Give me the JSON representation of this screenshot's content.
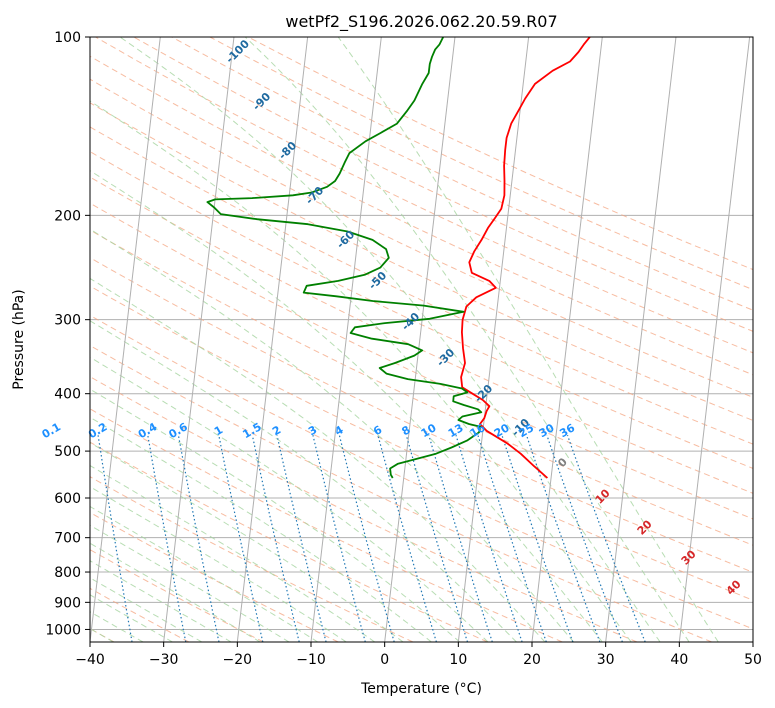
{
  "chart_data": {
    "type": "line",
    "diagram": "skew-t log-p",
    "title": "wetPf2_S196.2026.062.20.59.R07",
    "xlabel": "Temperature (°C)",
    "ylabel": "Pressure (hPa)",
    "xlim": [
      -40,
      50
    ],
    "ylim": [
      1050,
      100
    ],
    "y_scale": "log",
    "grid": true,
    "x_ticks": [
      -40,
      -30,
      -20,
      -10,
      0,
      10,
      20,
      30,
      40,
      50
    ],
    "y_ticks": [
      100,
      200,
      300,
      400,
      500,
      600,
      700,
      800,
      900,
      1000
    ],
    "colors": {
      "temperature": "#ff0000",
      "dewpoint": "#008000",
      "isotherm": "#b0b0b0",
      "dry_adiabat": "#f4a582",
      "moist_adiabat": "#a6d5a0",
      "mixing_ratio": "#1f77b4",
      "mixing_label": "#1e90ff",
      "dry_label": "#1f6aa0",
      "moist_label": "#d62728",
      "isobar": "#b0b0b0"
    },
    "series": [
      {
        "key": "temperature",
        "points": [
          [
            19.5,
            555
          ],
          [
            17.5,
            530
          ],
          [
            15.5,
            505
          ],
          [
            13.5,
            485
          ],
          [
            10.5,
            462
          ],
          [
            9.5,
            450
          ],
          [
            10.0,
            440
          ],
          [
            10.2,
            428
          ],
          [
            10.5,
            420
          ],
          [
            9.5,
            410
          ],
          [
            8.0,
            400
          ],
          [
            6.5,
            390
          ],
          [
            6.2,
            375
          ],
          [
            6.5,
            355
          ],
          [
            6.0,
            335
          ],
          [
            5.6,
            315
          ],
          [
            5.5,
            300
          ],
          [
            5.8,
            285
          ],
          [
            7.0,
            275
          ],
          [
            9.5,
            265
          ],
          [
            8.5,
            258
          ],
          [
            6.0,
            250
          ],
          [
            5.5,
            240
          ],
          [
            6.0,
            230
          ],
          [
            6.8,
            220
          ],
          [
            7.5,
            210
          ],
          [
            8.3,
            202
          ],
          [
            9.0,
            195
          ],
          [
            9.2,
            185
          ],
          [
            9.0,
            175
          ],
          [
            8.7,
            165
          ],
          [
            8.6,
            155
          ],
          [
            8.6,
            148
          ],
          [
            9.0,
            140
          ],
          [
            9.8,
            133
          ],
          [
            10.5,
            127
          ],
          [
            11.6,
            120
          ],
          [
            13.8,
            114
          ],
          [
            16.0,
            110
          ],
          [
            17.0,
            106
          ],
          [
            17.6,
            103
          ],
          [
            18.3,
            100
          ]
        ]
      },
      {
        "key": "dewpoint",
        "points": [
          [
            -1.5,
            555
          ],
          [
            -1.8,
            548
          ],
          [
            -2.0,
            535
          ],
          [
            -1.0,
            525
          ],
          [
            1.5,
            515
          ],
          [
            4.0,
            505
          ],
          [
            6.0,
            493
          ],
          [
            8.0,
            480
          ],
          [
            9.5,
            465
          ],
          [
            9.6,
            455
          ],
          [
            8.0,
            450
          ],
          [
            6.5,
            443
          ],
          [
            7.0,
            437
          ],
          [
            9.5,
            430
          ],
          [
            9.0,
            425
          ],
          [
            7.0,
            418
          ],
          [
            5.5,
            412
          ],
          [
            5.5,
            404
          ],
          [
            7.3,
            398
          ],
          [
            6.5,
            392
          ],
          [
            3.5,
            385
          ],
          [
            -1.0,
            378
          ],
          [
            -4.0,
            370
          ],
          [
            -5.0,
            362
          ],
          [
            -3.0,
            355
          ],
          [
            -0.5,
            345
          ],
          [
            0.5,
            338
          ],
          [
            -1.5,
            330
          ],
          [
            -6.5,
            323
          ],
          [
            -9.5,
            316
          ],
          [
            -9.0,
            309
          ],
          [
            -5.0,
            304
          ],
          [
            1.0,
            299
          ],
          [
            5.5,
            291
          ],
          [
            0.0,
            284
          ],
          [
            -7.0,
            279
          ],
          [
            -12.0,
            274
          ],
          [
            -16.5,
            270
          ],
          [
            -16.2,
            263
          ],
          [
            -12.0,
            258
          ],
          [
            -8.5,
            252
          ],
          [
            -6.5,
            245
          ],
          [
            -5.5,
            236
          ],
          [
            -6.0,
            228
          ],
          [
            -8.0,
            220
          ],
          [
            -11.5,
            213
          ],
          [
            -17.0,
            207
          ],
          [
            -24.0,
            203
          ],
          [
            -29.0,
            199
          ],
          [
            -30.0,
            194
          ],
          [
            -31.0,
            190
          ],
          [
            -30.0,
            188
          ],
          [
            -25.0,
            187
          ],
          [
            -19.5,
            185
          ],
          [
            -17.0,
            183
          ],
          [
            -15.0,
            179
          ],
          [
            -14.0,
            175
          ],
          [
            -13.5,
            170
          ],
          [
            -13.0,
            163
          ],
          [
            -12.5,
            157
          ],
          [
            -10.5,
            150
          ],
          [
            -8.5,
            145
          ],
          [
            -6.5,
            140
          ],
          [
            -5.3,
            133
          ],
          [
            -4.5,
            128
          ],
          [
            -3.7,
            120
          ],
          [
            -3.0,
            115
          ],
          [
            -3.0,
            111
          ],
          [
            -2.8,
            108
          ],
          [
            -2.5,
            105
          ],
          [
            -2.0,
            103
          ],
          [
            -1.6,
            100
          ]
        ]
      }
    ],
    "dry_adiabat_labels": [
      "-100",
      "-90",
      "-80",
      "-70",
      "-60",
      "-50",
      "-40",
      "-30",
      "-20",
      "-10"
    ],
    "mixing_ratio_labels": [
      "0.1",
      "0.2",
      "0.4",
      "0.6",
      "1",
      "1.5",
      "2",
      "3",
      "4",
      "6",
      "8",
      "10",
      "13",
      "16",
      "20",
      "25",
      "30",
      "36"
    ],
    "moist_adiabat_labels": [
      "0",
      "10",
      "20",
      "30",
      "40"
    ]
  }
}
